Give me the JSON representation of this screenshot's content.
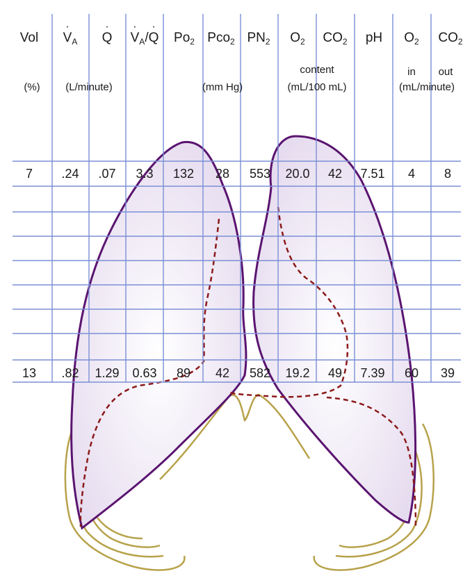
{
  "header": {
    "vol": "Vol",
    "va_base": "V",
    "va_sub": "A",
    "q": "Q",
    "vaq_base": "V",
    "vaq_sub": "A",
    "vaq_sep": "/",
    "vaq_q": "Q",
    "po2_base": "Po",
    "po2_sub": "2",
    "pco2_base": "Pco",
    "pco2_sub": "2",
    "pn2_base": "PN",
    "pn2_sub": "2",
    "o2_base": "O",
    "o2_sub": "2",
    "co2_base": "CO",
    "co2_sub": "2",
    "ph": "pH",
    "o2in_base": "O",
    "o2in_sub": "2",
    "co2out_base": "CO",
    "co2out_sub": "2"
  },
  "units": {
    "vol": "(%)",
    "flow": "(L/minute)",
    "pressure": "(mm Hg)",
    "content_top": "content",
    "content_bottom": "(mL/100 mL)",
    "in": "in",
    "out": "out",
    "exchange": "(mL/minute)"
  },
  "rows": {
    "apex": [
      "7",
      ".24",
      ".07",
      "3.3",
      "132",
      "28",
      "553",
      "20.0",
      "42",
      "7.51",
      "4",
      "8"
    ],
    "base": [
      "13",
      ".82",
      "1.29",
      "0.63",
      "89",
      "42",
      "582",
      "19.2",
      "49",
      "7.39",
      "60",
      "39"
    ]
  },
  "colors": {
    "grid": "#7b8fd6",
    "lung_outline": "#5a1470",
    "lung_fill": "#e6dcef",
    "diaphragm_dashed": "#8b1a1a",
    "ribs": "#b7a24a"
  }
}
